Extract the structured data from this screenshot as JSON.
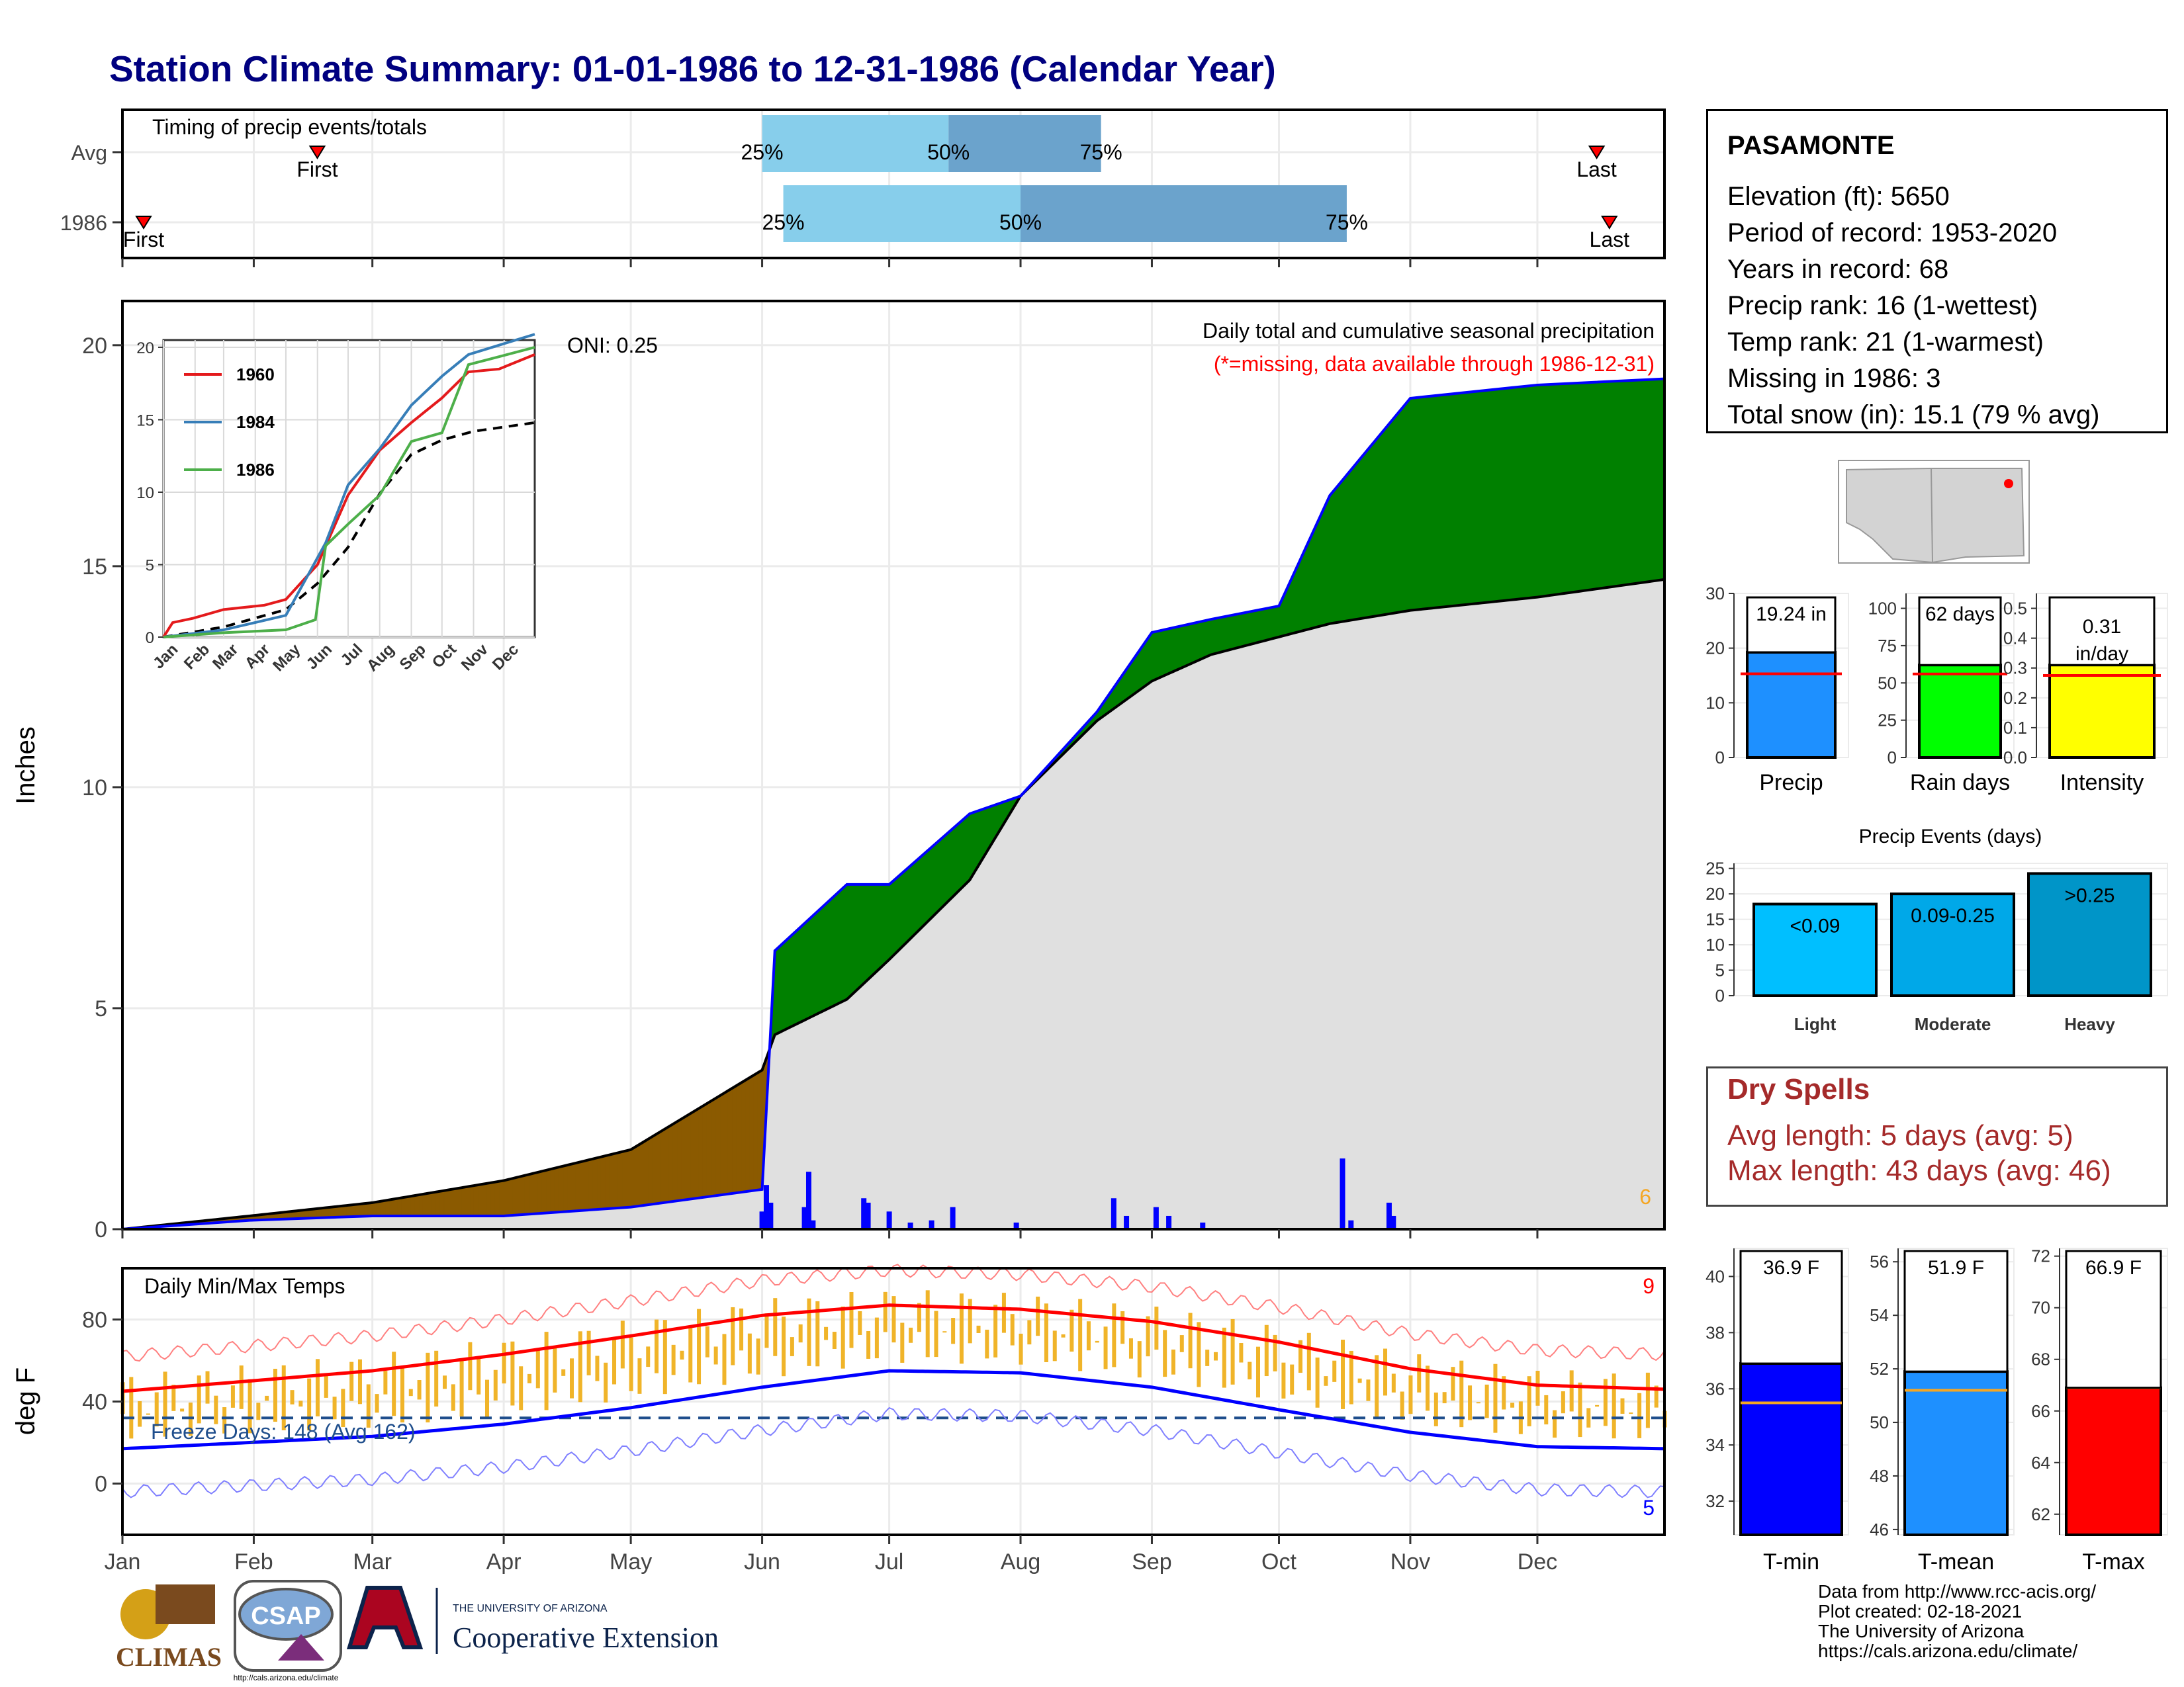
{
  "title": "Station Climate Summary: 01-01-1986 to 12-31-1986 (Calendar Year)",
  "colors": {
    "title": "#000080",
    "wet": "#008000",
    "dry": "#8b5a00",
    "avg_fill": "#e0e0e0",
    "obs_line": "#0000ff",
    "precip_bar": "#1e90ff",
    "raindays_bar": "#00ff00",
    "intensity_bar": "#ffff00",
    "light": "#00bfff",
    "moderate": "#00a8e8",
    "heavy": "#0095c8",
    "tmin": "#0000ff",
    "tmean": "#1e90ff",
    "tmax": "#ff0000",
    "temp_bar": "#f0b429",
    "dry_spells": "#a52a2a",
    "quantile_light": "#87ceeb",
    "quantile_dark": "#6ba3cc"
  },
  "timing": {
    "label": "Timing of precip events/totals",
    "rows": [
      {
        "name": "Avg",
        "first_marker": "First",
        "last_marker": "Last",
        "first_day": 47,
        "last_day": 349,
        "q25_day": 152,
        "q50_day": 196,
        "q75_day": 232,
        "q25_label": "25%",
        "q50_label": "50%",
        "q75_label": "75%"
      },
      {
        "name": "1986",
        "first_marker": "First",
        "last_marker": "Last",
        "first_day": 6,
        "last_day": 352,
        "q25_day": 157,
        "q50_day": 213,
        "q75_day": 290,
        "q25_label": "25%",
        "q50_label": "50%",
        "q75_label": "75%"
      }
    ]
  },
  "precip_panel": {
    "ylabel": "Inches",
    "yticks": [
      "0",
      "5",
      "10",
      "15",
      "20"
    ],
    "subtitle1": "Daily total and cumulative seasonal precipitation",
    "subtitle2": "(*=missing, data available through 1986-12-31)",
    "oni": "ONI: 0.25",
    "corner_count": "6",
    "ylim": [
      0,
      21
    ]
  },
  "inset": {
    "yticks": [
      "0",
      "5",
      "10",
      "15",
      "20"
    ],
    "months": [
      "Jan",
      "Feb",
      "Mar",
      "Apr",
      "May",
      "Jun",
      "Jul",
      "Aug",
      "Sep",
      "Oct",
      "Nov",
      "Dec"
    ],
    "legend": [
      {
        "name": "1960",
        "color": "#e41a1c"
      },
      {
        "name": "1984",
        "color": "#377eb8"
      },
      {
        "name": "1986",
        "color": "#4daf4a"
      }
    ]
  },
  "temp_panel": {
    "title": "Daily Min/Max Temps",
    "ylabel": "deg F",
    "yticks": [
      "0",
      "40",
      "80"
    ],
    "freeze": "Freeze Days: 148 (Avg 162)",
    "hot_count": "9",
    "cold_count": "5",
    "months": [
      "Jan",
      "Feb",
      "Mar",
      "Apr",
      "May",
      "Jun",
      "Jul",
      "Aug",
      "Sep",
      "Oct",
      "Nov",
      "Dec"
    ]
  },
  "station": {
    "name": "PASAMONTE",
    "lines": [
      "Elevation (ft): 5650",
      "Period of record: 1953-2020",
      "Years in record: 68",
      "Precip rank: 16 (1-wettest)",
      "Temp rank: 21 (1-warmest)",
      "Missing in 1986: 3",
      "Total snow (in): 15.1 (79 % avg)"
    ]
  },
  "summary_bars": [
    {
      "name": "Precip",
      "label": "19.24 in",
      "value": 19.24,
      "avg": 15.3,
      "ymax": 30,
      "yticks": [
        "0",
        "10",
        "20",
        "30"
      ],
      "colorKey": "precip_bar"
    },
    {
      "name": "Rain days",
      "label": "62 days",
      "value": 62,
      "avg": 56,
      "ymax": 110,
      "yticks": [
        "0",
        "25",
        "50",
        "75",
        "100"
      ],
      "colorKey": "raindays_bar"
    },
    {
      "name": "Intensity",
      "label": "0.31 in/day",
      "value": 0.31,
      "avg": 0.275,
      "ymax": 0.55,
      "yticks": [
        "0.0",
        "0.1",
        "0.2",
        "0.3",
        "0.4",
        "0.5"
      ],
      "colorKey": "intensity_bar"
    }
  ],
  "precip_events": {
    "title": "Precip Events (days)",
    "yticks": [
      "0",
      "5",
      "10",
      "15",
      "20",
      "25"
    ],
    "ymax": 26,
    "bars": [
      {
        "name": "Light",
        "label": "<0.09",
        "value": 18,
        "colorKey": "light"
      },
      {
        "name": "Moderate",
        "label": "0.09-0.25",
        "value": 20,
        "colorKey": "moderate"
      },
      {
        "name": "Heavy",
        "label": ">0.25",
        "value": 24,
        "colorKey": "heavy"
      }
    ]
  },
  "dry_spells": {
    "title": "Dry Spells",
    "avg_length": "Avg length: 5 days (avg: 5)",
    "max_length": "Max length: 43 days (avg: 46)"
  },
  "temp_bars": [
    {
      "name": "T-min",
      "label": "36.9 F",
      "value": 36.9,
      "avg": 35.5,
      "ymin": 30.8,
      "ymax": 41,
      "yticks": [
        "32",
        "34",
        "36",
        "38",
        "40"
      ],
      "tickvals": [
        32,
        34,
        36,
        38,
        40
      ],
      "colorKey": "tmin"
    },
    {
      "name": "T-mean",
      "label": "51.9 F",
      "value": 51.9,
      "avg": 51.2,
      "ymin": 45.8,
      "ymax": 56.5,
      "yticks": [
        "46",
        "48",
        "50",
        "52",
        "54",
        "56"
      ],
      "tickvals": [
        46,
        48,
        50,
        52,
        54,
        56
      ],
      "colorKey": "tmean"
    },
    {
      "name": "T-max",
      "label": "66.9 F",
      "value": 66.9,
      "avg": 66.9,
      "ymin": 61.2,
      "ymax": 72.3,
      "yticks": [
        "62",
        "64",
        "66",
        "68",
        "70",
        "72"
      ],
      "tickvals": [
        62,
        64,
        66,
        68,
        70,
        72
      ],
      "colorKey": "tmax"
    }
  ],
  "logos": {
    "climas": "CLIMAS",
    "csap": "CSAP",
    "csap_url": "http://cals.arizona.edu/climate",
    "ua_small": "THE UNIVERSITY OF ARIZONA",
    "ua_big": "Cooperative Extension"
  },
  "footer": [
    "Data from http://www.rcc-acis.org/",
    "Plot created: 02-18-2021",
    "The University of Arizona",
    "https://cals.arizona.edu/climate/"
  ],
  "chart_data": [
    {
      "type": "area",
      "title": "Daily total and cumulative seasonal precipitation",
      "ylabel": "Inches",
      "ylim": [
        0,
        21
      ],
      "x": [
        1,
        31,
        60,
        91,
        121,
        152,
        155,
        172,
        182,
        201,
        213,
        231,
        244,
        258,
        274,
        286,
        305,
        335,
        365
      ],
      "series": [
        {
          "name": "1986",
          "values": [
            0,
            0.2,
            0.3,
            0.3,
            0.5,
            0.9,
            6.3,
            7.8,
            7.8,
            9.4,
            9.8,
            11.7,
            13.5,
            13.8,
            14.1,
            16.6,
            18.8,
            19.1,
            19.24
          ]
        },
        {
          "name": "Avg",
          "values": [
            0,
            0.3,
            0.6,
            1.1,
            1.8,
            3.6,
            4.4,
            5.2,
            6.1,
            7.9,
            9.8,
            11.5,
            12.4,
            13.0,
            13.4,
            13.7,
            14.0,
            14.3,
            14.7
          ]
        }
      ],
      "daily_precip": [
        {
          "day": 152,
          "value": 0.4
        },
        {
          "day": 153,
          "value": 1.0
        },
        {
          "day": 154,
          "value": 0.6
        },
        {
          "day": 162,
          "value": 0.5
        },
        {
          "day": 163,
          "value": 1.3
        },
        {
          "day": 164,
          "value": 0.2
        },
        {
          "day": 176,
          "value": 0.7
        },
        {
          "day": 177,
          "value": 0.6
        },
        {
          "day": 182,
          "value": 0.4
        },
        {
          "day": 187,
          "value": 0.15
        },
        {
          "day": 192,
          "value": 0.2
        },
        {
          "day": 197,
          "value": 0.5
        },
        {
          "day": 212,
          "value": 0.15
        },
        {
          "day": 235,
          "value": 0.7
        },
        {
          "day": 238,
          "value": 0.3
        },
        {
          "day": 245,
          "value": 0.5
        },
        {
          "day": 248,
          "value": 0.3
        },
        {
          "day": 256,
          "value": 0.15
        },
        {
          "day": 289,
          "value": 1.6
        },
        {
          "day": 291,
          "value": 0.2
        },
        {
          "day": 300,
          "value": 0.6
        },
        {
          "day": 301,
          "value": 0.3
        }
      ]
    },
    {
      "type": "line",
      "title": "Daily Min/Max Temps",
      "ylabel": "deg F",
      "ylim": [
        -25,
        105
      ],
      "x": [
        1,
        31,
        60,
        91,
        121,
        152,
        182,
        213,
        244,
        274,
        305,
        335,
        365
      ],
      "series": [
        {
          "name": "Avg Tmax",
          "values": [
            45,
            50,
            55,
            63,
            72,
            82,
            87,
            85,
            79,
            69,
            56,
            48,
            46
          ]
        },
        {
          "name": "Avg Tmin",
          "values": [
            17,
            20,
            23,
            29,
            37,
            47,
            55,
            54,
            47,
            36,
            25,
            18,
            17
          ]
        }
      ]
    }
  ]
}
